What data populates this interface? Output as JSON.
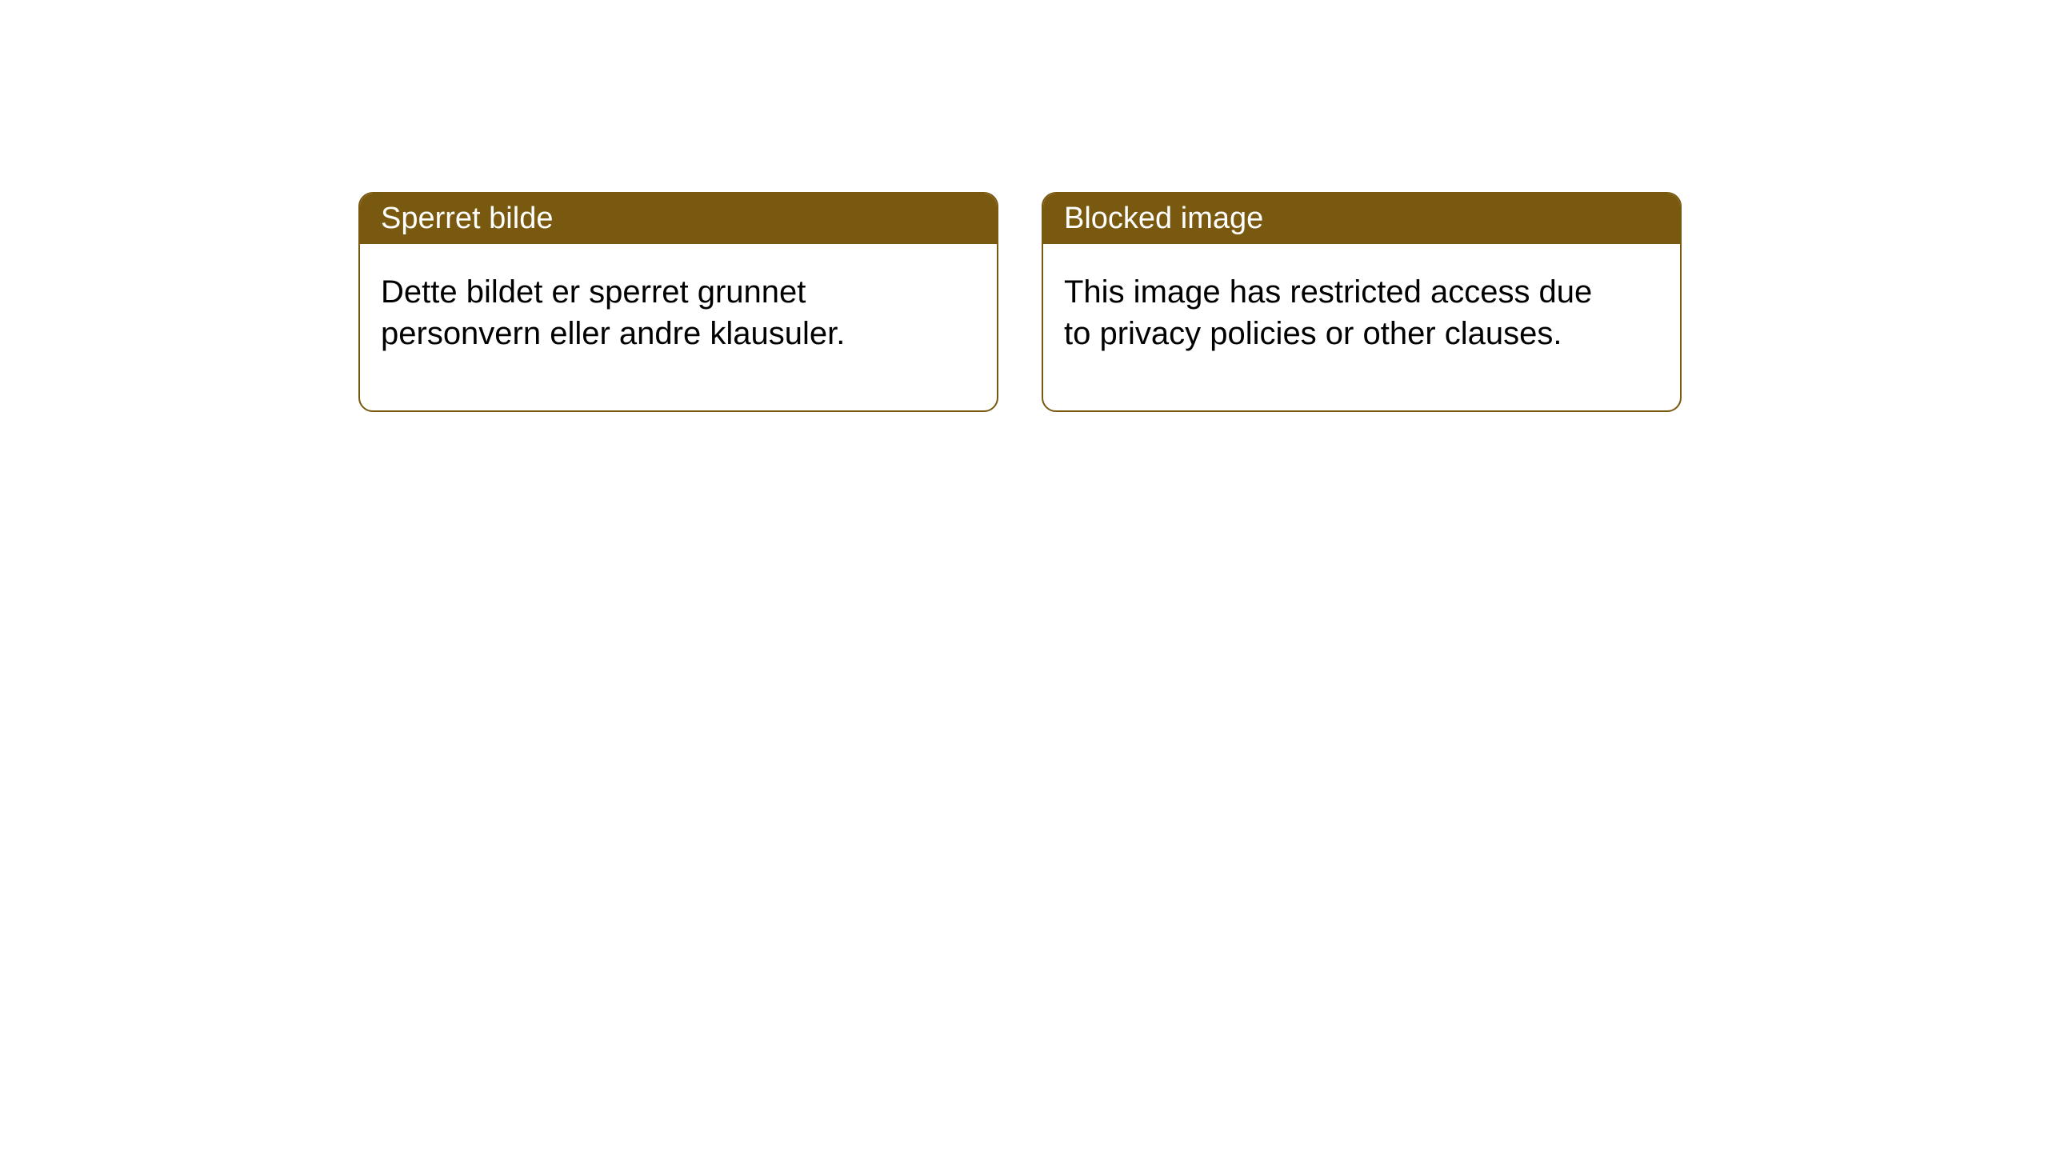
{
  "notices": [
    {
      "title": "Sperret bilde",
      "body": "Dette bildet er sperret grunnet personvern eller andre klausuler."
    },
    {
      "title": "Blocked image",
      "body": "This image has restricted access due to privacy policies or other clauses."
    }
  ],
  "style": {
    "header_bg_color": "#78590f",
    "header_text_color": "#ffffff",
    "border_color": "#78590f",
    "body_text_color": "#000000",
    "card_bg_color": "#ffffff",
    "page_bg_color": "#ffffff",
    "border_radius": 18,
    "header_fontsize": 38,
    "body_fontsize": 40
  }
}
